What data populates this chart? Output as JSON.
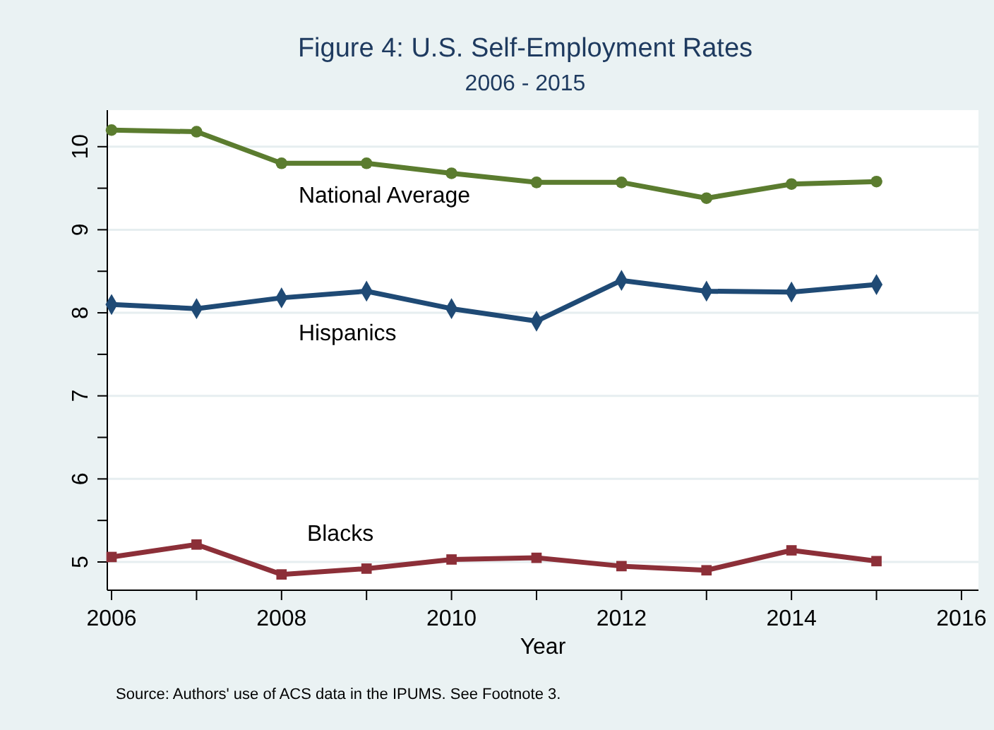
{
  "chart_data": {
    "type": "line",
    "title": "Figure 4: U.S. Self-Employment Rates",
    "subtitle": "2006 - 2015",
    "xlabel": "Year",
    "x": [
      2006,
      2007,
      2008,
      2009,
      2010,
      2011,
      2012,
      2013,
      2014,
      2015
    ],
    "xlim": [
      2005.95,
      2016.2
    ],
    "xticks": [
      2006,
      {
        "value": 2007,
        "label": null
      },
      2008,
      {
        "value": 2009,
        "label": null
      },
      2010,
      {
        "value": 2011,
        "label": null
      },
      2012,
      {
        "value": 2013,
        "label": null
      },
      2014,
      {
        "value": 2015,
        "label": null
      },
      2016
    ],
    "ylim": [
      4.66,
      10.44
    ],
    "yticks": [
      5,
      {
        "value": 5.5,
        "label": null
      },
      6,
      {
        "value": 6.5,
        "label": null
      },
      7,
      {
        "value": 7.5,
        "label": null
      },
      8,
      {
        "value": 8.5,
        "label": null
      },
      9,
      {
        "value": 9.5,
        "label": null
      },
      10
    ],
    "grid": "y",
    "line_style": "solid",
    "series": [
      {
        "name": "National Average",
        "color": "#5b7c2f",
        "marker": "circle",
        "values": [
          10.2,
          10.18,
          9.8,
          9.8,
          9.68,
          9.57,
          9.57,
          9.38,
          9.55,
          9.58
        ]
      },
      {
        "name": "Hispanics",
        "color": "#1f4a75",
        "marker": "diamond",
        "values": [
          8.1,
          8.05,
          8.18,
          8.26,
          8.05,
          7.9,
          8.39,
          8.26,
          8.25,
          8.34
        ]
      },
      {
        "name": "Blacks",
        "color": "#8c2f38",
        "marker": "square",
        "values": [
          5.06,
          5.21,
          4.85,
          4.92,
          5.03,
          5.05,
          4.95,
          4.9,
          5.14,
          5.01
        ]
      }
    ],
    "annotations": [
      "Source: Authors' use of ACS data in the IPUMS. See Footnote 3."
    ]
  }
}
